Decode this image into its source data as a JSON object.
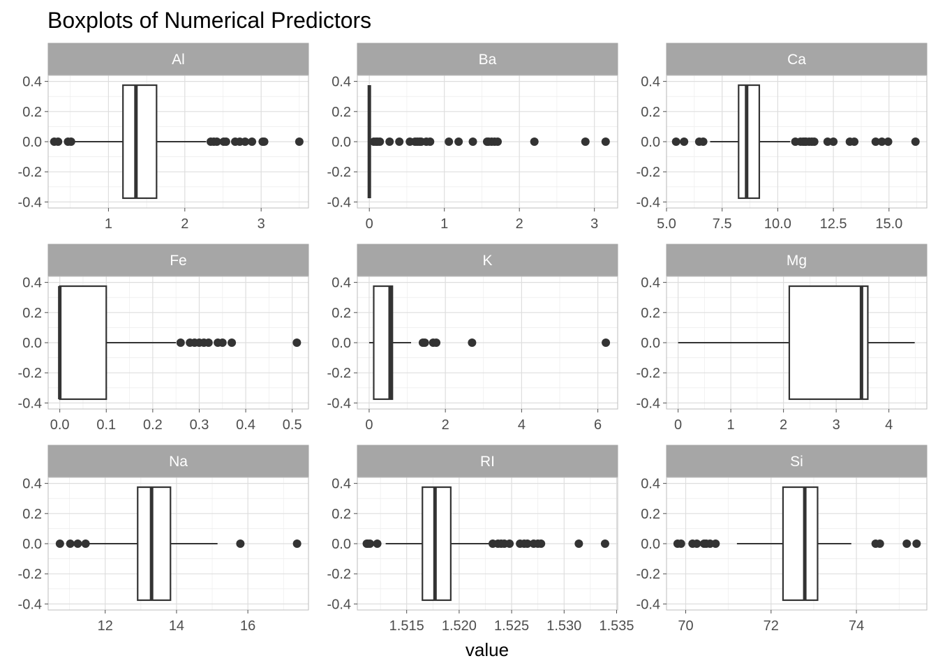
{
  "chart_data": {
    "type": "boxplot",
    "title": "Boxplots of Numerical Predictors",
    "xlabel": "value",
    "ylabel": "",
    "ylim": [
      -0.4,
      0.4
    ],
    "yticks": [
      0.4,
      0.2,
      0.0,
      -0.2,
      -0.4
    ],
    "ytick_labels": [
      "0.4",
      "0.2",
      "0.0",
      "-0.2",
      "-0.4"
    ],
    "grid": true,
    "strip_color": "#a6a6a6",
    "box_color": "#333333",
    "panels": [
      {
        "name": "Al",
        "xlim": [
          0.21,
          3.62
        ],
        "xticks": [
          1,
          2,
          3
        ],
        "xtick_labels": [
          "1",
          "2",
          "3"
        ],
        "box": {
          "whisker_low": 0.47,
          "q1": 1.19,
          "median": 1.36,
          "q3": 1.63,
          "whisker_high": 2.28
        },
        "outliers": [
          0.29,
          0.34,
          0.47,
          0.51,
          2.34,
          2.38,
          2.42,
          2.51,
          2.54,
          2.66,
          2.72,
          2.79,
          2.88,
          3.02,
          3.04,
          3.5
        ]
      },
      {
        "name": "Ba",
        "xlim": [
          -0.16,
          3.31
        ],
        "xticks": [
          0,
          1,
          2,
          3
        ],
        "xtick_labels": [
          "0",
          "1",
          "2",
          "3"
        ],
        "box": {
          "whisker_low": 0.0,
          "q1": 0.0,
          "median": 0.0,
          "q3": 0.0,
          "whisker_high": 0.0
        },
        "outliers": [
          0.06,
          0.09,
          0.11,
          0.14,
          0.27,
          0.4,
          0.54,
          0.61,
          0.64,
          0.67,
          0.69,
          0.76,
          0.81,
          1.06,
          1.19,
          1.38,
          1.57,
          1.59,
          1.63,
          1.67,
          1.71,
          2.2,
          2.88,
          3.15
        ]
      },
      {
        "name": "Ca",
        "xlim": [
          5.0,
          16.7
        ],
        "xticks": [
          5.0,
          7.5,
          10.0,
          12.5,
          15.0
        ],
        "xtick_labels": [
          "5.0",
          "7.5",
          "10.0",
          "12.5",
          "15.0"
        ],
        "box": {
          "whisker_low": 6.96,
          "q1": 8.24,
          "median": 8.6,
          "q3": 9.17,
          "whisker_high": 10.56
        },
        "outliers": [
          5.43,
          5.79,
          6.47,
          6.65,
          10.79,
          11.02,
          11.14,
          11.22,
          11.27,
          11.41,
          11.53,
          11.64,
          12.24,
          12.5,
          13.24,
          13.44,
          14.4,
          14.68,
          14.96,
          16.19
        ]
      },
      {
        "name": "Fe",
        "xlim": [
          -0.025,
          0.535
        ],
        "xticks": [
          0.0,
          0.1,
          0.2,
          0.3,
          0.4,
          0.5
        ],
        "xtick_labels": [
          "0.0",
          "0.1",
          "0.2",
          "0.3",
          "0.4",
          "0.5"
        ],
        "box": {
          "whisker_low": 0.0,
          "q1": 0.0,
          "median": 0.0,
          "q3": 0.1,
          "whisker_high": 0.25
        },
        "outliers": [
          0.26,
          0.28,
          0.29,
          0.3,
          0.31,
          0.32,
          0.34,
          0.35,
          0.37,
          0.51
        ]
      },
      {
        "name": "K",
        "xlim": [
          -0.31,
          6.52
        ],
        "xticks": [
          0,
          2,
          4,
          6
        ],
        "xtick_labels": [
          "0",
          "2",
          "4",
          "6"
        ],
        "box": {
          "whisker_low": 0.0,
          "q1": 0.12,
          "median": 0.55,
          "q3": 0.61,
          "whisker_high": 1.1
        },
        "outliers": [
          1.41,
          1.46,
          1.68,
          1.76,
          2.7,
          6.21
        ]
      },
      {
        "name": "Mg",
        "xlim": [
          -0.22,
          4.72
        ],
        "xticks": [
          0,
          1,
          2,
          3,
          4
        ],
        "xtick_labels": [
          "0",
          "1",
          "2",
          "3",
          "4"
        ],
        "box": {
          "whisker_low": 0.0,
          "q1": 2.11,
          "median": 3.48,
          "q3": 3.6,
          "whisker_high": 4.49
        },
        "outliers": []
      },
      {
        "name": "Na",
        "xlim": [
          10.4,
          17.7
        ],
        "xticks": [
          12,
          14,
          16
        ],
        "xtick_labels": [
          "12",
          "14",
          "16"
        ],
        "box": {
          "whisker_low": 11.45,
          "q1": 12.91,
          "median": 13.3,
          "q3": 13.83,
          "whisker_high": 15.15
        },
        "outliers": [
          10.73,
          11.02,
          11.23,
          11.45,
          15.79,
          17.38
        ]
      },
      {
        "name": "RI",
        "xlim": [
          1.5103,
          1.5351
        ],
        "xticks": [
          1.515,
          1.52,
          1.525,
          1.53,
          1.535
        ],
        "xtick_labels": [
          "1.515",
          "1.520",
          "1.525",
          "1.530",
          "1.535"
        ],
        "box": {
          "whisker_low": 1.513,
          "q1": 1.5165,
          "median": 1.5177,
          "q3": 1.5192,
          "whisker_high": 1.5229
        },
        "outliers": [
          1.5112,
          1.5113,
          1.5115,
          1.5122,
          1.5232,
          1.5237,
          1.524,
          1.5243,
          1.5248,
          1.5258,
          1.5262,
          1.5265,
          1.5271,
          1.5275,
          1.5278,
          1.5314,
          1.5339
        ]
      },
      {
        "name": "Si",
        "xlim": [
          69.55,
          75.65
        ],
        "xticks": [
          70,
          72,
          74
        ],
        "xtick_labels": [
          "70",
          "72",
          "74"
        ],
        "box": {
          "whisker_low": 71.2,
          "q1": 72.28,
          "median": 72.79,
          "q3": 73.09,
          "whisker_high": 73.88
        },
        "outliers": [
          69.81,
          69.89,
          70.16,
          70.26,
          70.43,
          70.48,
          70.57,
          70.7,
          74.45,
          74.55,
          75.18,
          75.41
        ]
      }
    ]
  }
}
